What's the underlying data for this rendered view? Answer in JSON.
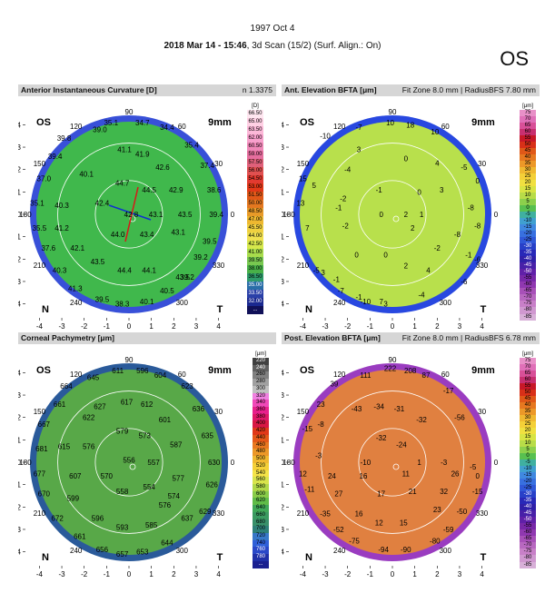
{
  "header": {
    "exam_date": "1997 Oct 4",
    "scan_bold": "2018 Mar 14 - 15:46",
    "scan_rest": ", 3d Scan (15/2) (Surf. Align.: On)",
    "eye": "OS"
  },
  "panels": [
    {
      "title": "Anterior Instantaneous Curvature [D]",
      "info": "n 1.3375",
      "eye_label": "OS",
      "zone_label": "9mm",
      "nasal_label": "N",
      "temporal_label": "T",
      "scale_unit": "[D]",
      "scale_values": [
        "66.50",
        "65.00",
        "63.50",
        "62.00",
        "60.50",
        "59.00",
        "57.50",
        "56.00",
        "54.50",
        "53.00",
        "51.50",
        "50.00",
        "48.50",
        "47.00",
        "45.50",
        "44.00",
        "42.50",
        "41.00",
        "39.50",
        "38.00",
        "36.50",
        "35.00",
        "33.50",
        "32.00",
        "..."
      ],
      "scale_colors": [
        "#ffe6f0",
        "#ffd0e4",
        "#fcb8d8",
        "#f8a0cc",
        "#f088b8",
        "#e66e9e",
        "#e0607a",
        "#e05050",
        "#e23a30",
        "#e23818",
        "#e05818",
        "#e47820",
        "#e89a28",
        "#eeb830",
        "#f0d040",
        "#f0e050",
        "#d6e84c",
        "#a8dc4c",
        "#78c850",
        "#48b048",
        "#2e9a6a",
        "#2a6ea8",
        "#2a40a8",
        "#1a2890",
        "#101058"
      ],
      "values": [
        [
          "35.1",
          -0.8,
          4.1
        ],
        [
          "34.7",
          0.6,
          4.1
        ],
        [
          "34.4",
          1.7,
          3.9
        ],
        [
          "39.0",
          -1.3,
          3.8
        ],
        [
          "39.8",
          -2.9,
          3.4
        ],
        [
          "35.4",
          2.8,
          3.1
        ],
        [
          "39.4",
          -3.3,
          2.6
        ],
        [
          "41.1",
          -0.2,
          2.9
        ],
        [
          "41.9",
          0.6,
          2.7
        ],
        [
          "42.6",
          1.5,
          2.1
        ],
        [
          "37.4",
          3.5,
          2.2
        ],
        [
          "37.0",
          -3.8,
          1.6
        ],
        [
          "40.1",
          -1.9,
          1.8
        ],
        [
          "44.7",
          -0.3,
          1.4
        ],
        [
          "44.5",
          0.9,
          1.1
        ],
        [
          "42.9",
          2.1,
          1.1
        ],
        [
          "38.6",
          3.8,
          1.1
        ],
        [
          "35.1",
          -4.1,
          0.5
        ],
        [
          "40.3",
          -3.0,
          0.4
        ],
        [
          "42.4",
          -1.2,
          0.5
        ],
        [
          "42.8",
          0.1,
          0.0
        ],
        [
          "43.1",
          1.2,
          0.0
        ],
        [
          "43.5",
          2.5,
          0.0
        ],
        [
          "39.4",
          3.9,
          0.0
        ],
        [
          "35.5",
          -4.0,
          -0.6
        ],
        [
          "41.2",
          -3.0,
          -0.6
        ],
        [
          "44.0",
          -0.5,
          -0.9
        ],
        [
          "43.4",
          0.8,
          -0.9
        ],
        [
          "43.1",
          2.2,
          -0.8
        ],
        [
          "39.5",
          3.6,
          -1.2
        ],
        [
          "37.6",
          -3.6,
          -1.5
        ],
        [
          "42.1",
          -2.3,
          -1.5
        ],
        [
          "43.5",
          -1.4,
          -2.1
        ],
        [
          "44.4",
          -0.2,
          -2.5
        ],
        [
          "44.1",
          0.9,
          -2.5
        ],
        [
          "39.2",
          3.2,
          -1.9
        ],
        [
          "40.3",
          -3.1,
          -2.5
        ],
        [
          "43.5",
          2.4,
          -2.8
        ],
        [
          "39.2",
          2.6,
          -2.8
        ],
        [
          "41.3",
          -2.4,
          -3.3
        ],
        [
          "40.5",
          1.7,
          -3.4
        ],
        [
          "39.5",
          -1.2,
          -3.8
        ],
        [
          "38.3",
          -0.3,
          -4.0
        ],
        [
          "40.1",
          0.8,
          -3.9
        ]
      ],
      "field_colors": [
        "#40b84c",
        "#48c050",
        "#58c858",
        "#68d060",
        "#78d868",
        "#a0e070",
        "#c8ec80"
      ],
      "edge_color": "#3850d8"
    },
    {
      "title": "Ant. Elevation BFTA [μm]",
      "info": "Fit Zone 8.0 mm | RadiusBFS 7.80 mm",
      "eye_label": "OS",
      "zone_label": "9mm",
      "nasal_label": "N",
      "temporal_label": "T",
      "scale_unit": "[μm]",
      "scale_values": [
        "75",
        "70",
        "65",
        "60",
        "55",
        "50",
        "45",
        "40",
        "35",
        "30",
        "25",
        "20",
        "15",
        "10",
        "5",
        "0",
        "-5",
        "-10",
        "-15",
        "-20",
        "-25",
        "-30",
        "-35",
        "-40",
        "-45",
        "-50",
        "-55",
        "-60",
        "-65",
        "-70",
        "-75",
        "-80",
        "-85"
      ],
      "scale_colors": [
        "#e890c8",
        "#e070b8",
        "#d85098",
        "#c83070",
        "#c81828",
        "#d83018",
        "#e05818",
        "#e67820",
        "#ec9828",
        "#f0b830",
        "#f4d038",
        "#f0e040",
        "#d8e444",
        "#b8dc48",
        "#8cd04c",
        "#58c050",
        "#40b0a0",
        "#40a0d0",
        "#4088e0",
        "#3870e0",
        "#3058d8",
        "#2840c8",
        "#2828b8",
        "#3020a8",
        "#4820a8",
        "#6020a8",
        "#7828a8",
        "#9038b0",
        "#a850b8",
        "#b868c0",
        "#c880c8",
        "#d098d0",
        "#d8b0d8"
      ],
      "values": [
        [
          "10",
          -0.1,
          4.1
        ],
        [
          "18",
          0.8,
          4.0
        ],
        [
          "-7",
          -1.5,
          3.9
        ],
        [
          "10",
          1.9,
          3.7
        ],
        [
          "-10",
          -3.0,
          3.5
        ],
        [
          "3",
          -1.5,
          2.9
        ],
        [
          "-4",
          -2.0,
          2.0
        ],
        [
          "0",
          0.6,
          2.5
        ],
        [
          "4",
          2.0,
          2.3
        ],
        [
          "-5",
          3.2,
          2.1
        ],
        [
          "0",
          3.8,
          1.5
        ],
        [
          "15",
          -4.0,
          1.6
        ],
        [
          "5",
          -3.5,
          1.3
        ],
        [
          "-2",
          -2.2,
          0.7
        ],
        [
          "-1",
          -0.6,
          1.1
        ],
        [
          "0",
          1.2,
          1.0
        ],
        [
          "3",
          2.2,
          1.1
        ],
        [
          "13",
          -4.1,
          0.5
        ],
        [
          "-1",
          -2.4,
          0.3
        ],
        [
          "0",
          -0.5,
          0.0
        ],
        [
          "2",
          0.6,
          0.0
        ],
        [
          "1",
          1.3,
          0.0
        ],
        [
          "-8",
          3.5,
          0.3
        ],
        [
          "-2",
          -2.1,
          -0.5
        ],
        [
          "2",
          0.9,
          -0.6
        ],
        [
          "-8",
          3.8,
          -0.5
        ],
        [
          "7",
          -3.8,
          -0.6
        ],
        [
          "-8",
          2.9,
          -0.9
        ],
        [
          "0",
          -0.3,
          -1.8
        ],
        [
          "0",
          -1.6,
          -1.8
        ],
        [
          "-2",
          2.0,
          -1.5
        ],
        [
          "-1",
          3.4,
          -1.8
        ],
        [
          "-6",
          3.8,
          -2.0
        ],
        [
          "3",
          -3.1,
          -2.6
        ],
        [
          "2",
          0.6,
          -2.3
        ],
        [
          "4",
          1.6,
          -2.5
        ],
        [
          "-5",
          -3.4,
          -2.5
        ],
        [
          "-1",
          -2.5,
          -2.9
        ],
        [
          "-6",
          3.2,
          -3.0
        ],
        [
          "-7",
          -2.3,
          -3.4
        ],
        [
          "-4",
          1.3,
          -3.6
        ],
        [
          "-1",
          -1.5,
          -3.7
        ],
        [
          "7",
          -0.5,
          -3.9
        ],
        [
          "3",
          -0.3,
          -4.0
        ],
        [
          "-10",
          -1.2,
          -3.9
        ]
      ],
      "field_colors": [
        "#b8e04c",
        "#b0dc48",
        "#a8d848",
        "#b8e050",
        "#c8e450",
        "#d8e850",
        "#ece850"
      ],
      "edge_color": "#2848e0"
    },
    {
      "title": "Corneal Pachymetry [μm]",
      "info": "",
      "eye_label": "OS",
      "zone_label": "9mm",
      "nasal_label": "N",
      "temporal_label": "T",
      "scale_unit": "[μm]",
      "scale_values": [
        "220",
        "240",
        "260",
        "280",
        "300",
        "320",
        "340",
        "360",
        "380",
        "400",
        "420",
        "440",
        "460",
        "480",
        "500",
        "520",
        "540",
        "560",
        "580",
        "600",
        "620",
        "640",
        "660",
        "680",
        "700",
        "720",
        "740",
        "760",
        "780",
        "..."
      ],
      "scale_colors": [
        "#404040",
        "#606060",
        "#808080",
        "#a0a0a0",
        "#c0c0c0",
        "#f080e0",
        "#f048b8",
        "#e8208c",
        "#e01868",
        "#d81844",
        "#e03818",
        "#e45818",
        "#e87820",
        "#ec9828",
        "#f0b830",
        "#f4d038",
        "#f4e448",
        "#d8e44c",
        "#b0d848",
        "#88cc48",
        "#60bc48",
        "#40a858",
        "#3a9a60",
        "#38906a",
        "#2e8078",
        "#3878c8",
        "#3060d8",
        "#2a48c8",
        "#2030a8",
        "#1a2090"
      ],
      "values": [
        [
          "611",
          -0.5,
          4.1
        ],
        [
          "596",
          0.6,
          4.1
        ],
        [
          "604",
          1.4,
          3.9
        ],
        [
          "645",
          -1.6,
          3.8
        ],
        [
          "664",
          -2.8,
          3.4
        ],
        [
          "623",
          2.6,
          3.4
        ],
        [
          "661",
          -3.1,
          2.6
        ],
        [
          "627",
          -1.3,
          2.5
        ],
        [
          "617",
          -0.1,
          2.7
        ],
        [
          "612",
          0.8,
          2.6
        ],
        [
          "636",
          3.1,
          2.4
        ],
        [
          "667",
          -3.8,
          1.7
        ],
        [
          "622",
          -1.8,
          2.0
        ],
        [
          "579",
          -0.3,
          1.4
        ],
        [
          "573",
          0.7,
          1.2
        ],
        [
          "601",
          1.6,
          1.9
        ],
        [
          "635",
          3.5,
          1.2
        ],
        [
          "681",
          -3.9,
          0.6
        ],
        [
          "615",
          -2.9,
          0.7
        ],
        [
          "576",
          -1.8,
          0.7
        ],
        [
          "556",
          0.0,
          0.1
        ],
        [
          "557",
          1.1,
          0.0
        ],
        [
          "587",
          2.1,
          0.8
        ],
        [
          "630",
          3.8,
          0.0
        ],
        [
          "677",
          -4.0,
          -0.5
        ],
        [
          "607",
          -2.4,
          -0.6
        ],
        [
          "570",
          -1.0,
          -0.6
        ],
        [
          "558",
          -0.3,
          -1.3
        ],
        [
          "554",
          0.9,
          -1.1
        ],
        [
          "577",
          2.2,
          -0.7
        ],
        [
          "626",
          3.7,
          -1.0
        ],
        [
          "670",
          -3.8,
          -1.4
        ],
        [
          "599",
          -2.5,
          -1.6
        ],
        [
          "574",
          2.0,
          -1.5
        ],
        [
          "629",
          3.4,
          -2.2
        ],
        [
          "672",
          -3.2,
          -2.5
        ],
        [
          "596",
          -1.4,
          -2.5
        ],
        [
          "593",
          -0.3,
          -2.9
        ],
        [
          "585",
          1.0,
          -2.8
        ],
        [
          "576",
          1.6,
          -1.9
        ],
        [
          "637",
          2.6,
          -2.5
        ],
        [
          "661",
          -2.2,
          -3.3
        ],
        [
          "656",
          -1.2,
          -3.9
        ],
        [
          "657",
          -0.3,
          -4.1
        ],
        [
          "653",
          0.6,
          -4.0
        ],
        [
          "644",
          1.7,
          -3.6
        ]
      ],
      "field_colors": [
        "#58a848",
        "#68b44c",
        "#80c450",
        "#98d058",
        "#a8d85c",
        "#b8dc60",
        "#c0e064"
      ],
      "edge_color": "#2a5a9a"
    },
    {
      "title": "Post. Elevation BFTA [μm]",
      "info": "Fit Zone 8.0 mm | RadiusBFS 6.78 mm",
      "eye_label": "OS",
      "zone_label": "9mm",
      "nasal_label": "N",
      "temporal_label": "T",
      "scale_unit": "[μm]",
      "scale_values": [
        "75",
        "70",
        "65",
        "60",
        "55",
        "50",
        "45",
        "40",
        "35",
        "30",
        "25",
        "20",
        "15",
        "10",
        "5",
        "0",
        "-5",
        "-10",
        "-15",
        "-20",
        "-25",
        "-30",
        "-35",
        "-40",
        "-45",
        "-50",
        "-55",
        "-60",
        "-65",
        "-70",
        "-75",
        "-80",
        "-85"
      ],
      "scale_colors": [
        "#e890c8",
        "#e070b8",
        "#d85098",
        "#c83070",
        "#c81828",
        "#d83018",
        "#e05818",
        "#e67820",
        "#ec9828",
        "#f0b830",
        "#f4d038",
        "#f0e040",
        "#d8e444",
        "#b8dc48",
        "#8cd04c",
        "#58c050",
        "#40b0a0",
        "#40a0d0",
        "#4088e0",
        "#3870e0",
        "#3058d8",
        "#2840c8",
        "#2828b8",
        "#3020a8",
        "#4820a8",
        "#6020a8",
        "#7828a8",
        "#9038b0",
        "#a850b8",
        "#b868c0",
        "#c880c8",
        "#d098d0",
        "#d8b0d8"
      ],
      "values": [
        [
          "222",
          -0.1,
          4.2
        ],
        [
          "208",
          0.8,
          4.1
        ],
        [
          "111",
          -1.2,
          3.9
        ],
        [
          "87",
          1.5,
          3.9
        ],
        [
          "39",
          -2.6,
          3.5
        ],
        [
          "-17",
          2.5,
          3.2
        ],
        [
          "23",
          -3.2,
          2.6
        ],
        [
          "-43",
          -1.6,
          2.4
        ],
        [
          "-34",
          -0.6,
          2.5
        ],
        [
          "-31",
          0.3,
          2.4
        ],
        [
          "-32",
          1.3,
          1.9
        ],
        [
          "-56",
          3.0,
          2.0
        ],
        [
          "-15",
          -3.8,
          1.5
        ],
        [
          "-8",
          -3.2,
          1.7
        ],
        [
          "-24",
          0.4,
          0.8
        ],
        [
          "-32",
          -0.5,
          1.1
        ],
        [
          "-3",
          -3.3,
          0.3
        ],
        [
          "-10",
          -1.2,
          0.0
        ],
        [
          "1",
          1.2,
          0.0
        ],
        [
          "-3",
          2.3,
          0.0
        ],
        [
          "12",
          -4.0,
          -0.5
        ],
        [
          "24",
          -2.7,
          -0.6
        ],
        [
          "16",
          -1.3,
          -0.6
        ],
        [
          "11",
          0.6,
          -0.5
        ],
        [
          "26",
          2.8,
          -0.5
        ],
        [
          "-5",
          3.6,
          -0.2
        ],
        [
          "0",
          3.8,
          -0.6
        ],
        [
          "-11",
          -3.7,
          -1.2
        ],
        [
          "27",
          -2.4,
          -1.4
        ],
        [
          "17",
          -0.5,
          -1.4
        ],
        [
          "21",
          0.9,
          -1.3
        ],
        [
          "32",
          2.3,
          -1.3
        ],
        [
          "-15",
          3.8,
          -1.3
        ],
        [
          "-35",
          -3.0,
          -2.3
        ],
        [
          "16",
          -1.5,
          -2.3
        ],
        [
          "12",
          -0.6,
          -2.7
        ],
        [
          "15",
          0.5,
          -2.7
        ],
        [
          "23",
          2.0,
          -2.1
        ],
        [
          "-50",
          3.1,
          -2.2
        ],
        [
          "-52",
          -2.4,
          -3.0
        ],
        [
          "-59",
          2.5,
          -3.0
        ],
        [
          "-75",
          -1.7,
          -3.5
        ],
        [
          "-94",
          -0.4,
          -3.9
        ],
        [
          "-90",
          0.6,
          -3.9
        ],
        [
          "-80",
          1.9,
          -3.5
        ]
      ],
      "field_colors": [
        "#e08040",
        "#e6a03c",
        "#eed040",
        "#c8e450",
        "#58c8c0",
        "#3890e0",
        "#3040c8"
      ],
      "edge_color": "#9a3cc0"
    }
  ],
  "axis_ticks_left": [
    "4",
    "3",
    "2",
    "1",
    "0",
    "-1",
    "-2",
    "-3",
    "-4"
  ],
  "axis_ticks_bottom": [
    "-4",
    "-3",
    "-2",
    "-1",
    "0",
    "1",
    "2",
    "3",
    "4"
  ],
  "angle_labels": [
    "90",
    "120",
    "60",
    "150",
    "30",
    "180",
    "0",
    "210",
    "330",
    "240",
    "300"
  ]
}
